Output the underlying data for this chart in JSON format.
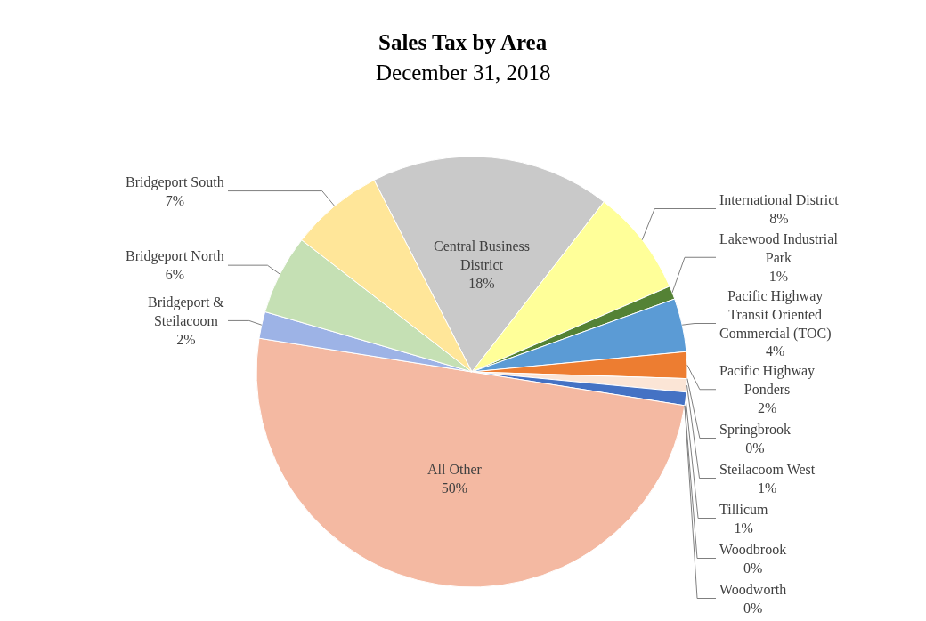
{
  "chart_data": {
    "type": "pie",
    "title": "Sales Tax by Area",
    "subtitle": "December 31, 2018",
    "categories": [
      "Central Business District",
      "International District",
      "Lakewood Industrial Park",
      "Pacific Highway Transit Oriented Commercial (TOC)",
      "Pacific Highway Ponders",
      "Springbrook",
      "Steilacoom West",
      "Tillicum",
      "Woodbrook",
      "Woodworth",
      "All Other",
      "Bridgeport & Steilacoom",
      "Bridgeport North",
      "Bridgeport South"
    ],
    "values": [
      18,
      8,
      1,
      4,
      2,
      0,
      1,
      1,
      0,
      0,
      50,
      2,
      6,
      7
    ],
    "value_labels": [
      "18%",
      "8%",
      "1%",
      "4%",
      "2%",
      "0%",
      "1%",
      "1%",
      "0%",
      "0%",
      "50%",
      "2%",
      "6%",
      "7%"
    ],
    "colors": [
      "#c9c9c9",
      "#ffff99",
      "#548235",
      "#5b9bd5",
      "#ed7d31",
      "#a5a5a5",
      "#fbe5d6",
      "#4472c4",
      "#70ad47",
      "#264478",
      "#f4b9a2",
      "#9db3e6",
      "#c5e0b4",
      "#ffe699"
    ],
    "legend": false
  }
}
